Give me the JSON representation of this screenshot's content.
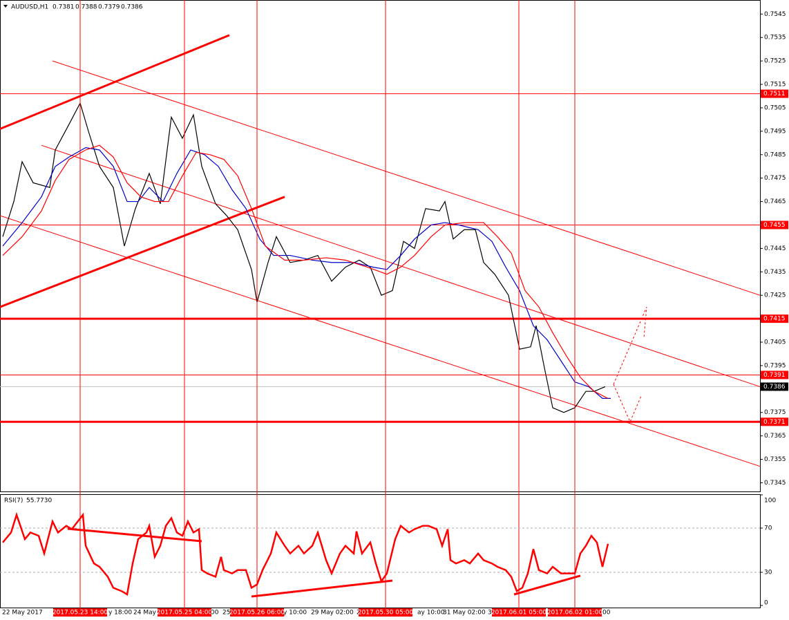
{
  "chart_data": [
    {
      "type": "line",
      "title": "AUDUSD,H1",
      "ohlc": [
        0.7381,
        0.7388,
        0.7379,
        0.7386
      ],
      "xlim": [
        0,
        275
      ],
      "ylim": [
        0.7341,
        0.7551
      ],
      "yticks": [
        0.7545,
        0.7535,
        0.7525,
        0.7515,
        0.7505,
        0.7495,
        0.7485,
        0.7475,
        0.7465,
        0.7455,
        0.7445,
        0.7435,
        0.7425,
        0.7415,
        0.7405,
        0.7395,
        0.7385,
        0.7375,
        0.7365,
        0.7355,
        0.7345
      ],
      "grid": false,
      "series": [
        {
          "color": "#000000",
          "x": [
            1,
            5,
            8,
            12,
            18,
            20,
            25,
            29,
            32,
            36,
            41,
            45,
            49,
            54,
            58,
            62,
            66,
            70,
            73,
            78,
            82,
            86,
            91,
            93,
            97,
            100,
            105,
            110,
            115,
            120,
            125,
            130,
            134,
            138,
            142,
            146,
            150,
            154,
            159,
            161,
            164,
            168,
            172,
            175,
            179,
            184,
            188,
            192,
            194,
            197,
            200,
            204,
            208,
            212,
            215,
            219
          ],
          "values": [
            0.745,
            0.7465,
            0.7482,
            0.7473,
            0.7471,
            0.7487,
            0.7498,
            0.7507,
            0.7495,
            0.748,
            0.7471,
            0.7446,
            0.7462,
            0.7477,
            0.7464,
            0.7501,
            0.7492,
            0.7502,
            0.748,
            0.7464,
            0.7459,
            0.7453,
            0.7436,
            0.7422,
            0.7439,
            0.745,
            0.7439,
            0.744,
            0.7442,
            0.7431,
            0.7437,
            0.744,
            0.7437,
            0.7425,
            0.7427,
            0.7448,
            0.7445,
            0.7462,
            0.7461,
            0.7465,
            0.7449,
            0.7453,
            0.7453,
            0.7439,
            0.7434,
            0.7425,
            0.7402,
            0.7403,
            0.7412,
            0.7394,
            0.7377,
            0.7375,
            0.7377,
            0.7384,
            0.7384,
            0.7386
          ]
        },
        {
          "color": "#0000c8",
          "x": [
            1,
            8,
            15,
            20,
            25,
            31,
            36,
            41,
            46,
            50,
            54,
            59,
            64,
            69,
            74,
            79,
            84,
            89,
            94,
            99,
            105,
            113,
            120,
            128,
            135,
            140,
            145,
            150,
            156,
            161,
            166,
            173,
            178,
            183,
            188,
            193,
            198,
            203,
            208,
            213,
            218,
            221
          ],
          "values": [
            0.7446,
            0.7456,
            0.7467,
            0.748,
            0.7484,
            0.7488,
            0.7487,
            0.748,
            0.7465,
            0.7465,
            0.7471,
            0.7465,
            0.7477,
            0.7487,
            0.7485,
            0.748,
            0.747,
            0.7462,
            0.7449,
            0.7442,
            0.7442,
            0.744,
            0.7439,
            0.7439,
            0.7437,
            0.7436,
            0.7442,
            0.7449,
            0.7455,
            0.7456,
            0.7455,
            0.7453,
            0.7448,
            0.7437,
            0.7427,
            0.7412,
            0.7406,
            0.7397,
            0.7388,
            0.7386,
            0.7381,
            0.7381
          ]
        },
        {
          "color": "#ff0000",
          "x": [
            1,
            8,
            15,
            20,
            25,
            31,
            36,
            41,
            46,
            51,
            56,
            61,
            66,
            71,
            76,
            81,
            86,
            91,
            96,
            103,
            110,
            118,
            125,
            133,
            140,
            145,
            150,
            156,
            161,
            168,
            175,
            180,
            185,
            190,
            195,
            200,
            205,
            210,
            215,
            220
          ],
          "values": [
            0.7442,
            0.745,
            0.7461,
            0.7474,
            0.7483,
            0.7487,
            0.7489,
            0.7484,
            0.7473,
            0.7467,
            0.7465,
            0.7465,
            0.7476,
            0.7486,
            0.7485,
            0.7483,
            0.7476,
            0.7462,
            0.7446,
            0.744,
            0.744,
            0.7441,
            0.744,
            0.7437,
            0.7434,
            0.7437,
            0.7442,
            0.745,
            0.7455,
            0.7456,
            0.7456,
            0.745,
            0.7443,
            0.7427,
            0.742,
            0.7409,
            0.7399,
            0.739,
            0.7384,
            0.7381
          ]
        }
      ],
      "levels": [
        {
          "value": 0.7511,
          "thick": false
        },
        {
          "value": 0.7455,
          "thick": false
        },
        {
          "value": 0.7415,
          "thick": true
        },
        {
          "value": 0.7391,
          "thick": false
        },
        {
          "value": 0.7371,
          "thick": true
        }
      ],
      "trend_lines": [
        {
          "x": [
            19,
            275
          ],
          "values": [
            0.7525,
            0.7425
          ],
          "thick": false
        },
        {
          "x": [
            15,
            275
          ],
          "values": [
            0.7489,
            0.7386
          ],
          "thick": false
        },
        {
          "x": [
            0,
            275
          ],
          "values": [
            0.7459,
            0.7352
          ],
          "thick": false
        },
        {
          "x": [
            0,
            83
          ],
          "values": [
            0.7496,
            0.7536
          ],
          "thick": true
        },
        {
          "x": [
            0,
            103
          ],
          "values": [
            0.742,
            0.7467
          ],
          "thick": true
        }
      ],
      "projections": [
        {
          "x": [
            222,
            234,
            233
          ],
          "values": [
            0.7387,
            0.742,
            0.7407
          ]
        },
        {
          "x": [
            222,
            228,
            232
          ],
          "values": [
            0.7387,
            0.7371,
            0.7382
          ]
        }
      ],
      "time_markers": [
        {
          "x": 29,
          "label": "2017.05.23 14:00"
        },
        {
          "x": 66.75,
          "label": "2017.05.25 04:00"
        },
        {
          "x": 93,
          "label": "2017.05.26 06:00"
        },
        {
          "x": 139.5,
          "label": "2017.05.30 05:00"
        },
        {
          "x": 187.75,
          "label": "2017.06.01 05:00"
        },
        {
          "x": 208,
          "label": "2017.06.02 01:00"
        }
      ],
      "x_labels": [
        {
          "x": 0.75,
          "label": "22 May 2017"
        },
        {
          "x": 39.25,
          "label": "y 18:00"
        },
        {
          "x": 48.25,
          "label": "24 May"
        },
        {
          "x": 76.25,
          "label": "00"
        },
        {
          "x": 80.5,
          "label": "25"
        },
        {
          "x": 102.5,
          "label": "y 10:00"
        },
        {
          "x": 112.5,
          "label": "29 May 02:00"
        },
        {
          "x": 129,
          "label": "2"
        },
        {
          "x": 151,
          "label": "ay 10:00"
        },
        {
          "x": 160.25,
          "label": "31 May 02:00"
        },
        {
          "x": 176.5,
          "label": "3"
        },
        {
          "x": 218,
          "label": "00"
        }
      ]
    },
    {
      "type": "line",
      "title": "RSI(7)",
      "current_label": "55.7730",
      "color": "#ff0000",
      "xlim": [
        0,
        275
      ],
      "ylim": [
        0,
        100
      ],
      "yticks": [
        100,
        70,
        30,
        0
      ],
      "levels": [
        70,
        30
      ],
      "x": [
        1,
        4,
        6,
        9,
        11,
        14,
        16,
        19,
        21,
        24,
        26,
        30,
        31,
        34,
        36,
        39,
        41,
        44,
        46,
        48,
        50,
        53,
        54,
        56,
        58,
        60,
        62,
        64,
        66,
        68,
        70,
        72,
        73,
        75,
        78,
        80,
        81,
        84,
        86,
        89,
        91,
        93,
        95,
        98,
        100,
        103,
        105,
        108,
        110,
        113,
        115,
        118,
        120,
        123,
        125,
        128,
        129,
        131,
        134,
        136,
        138,
        140,
        143,
        145,
        148,
        150,
        153,
        155,
        158,
        160,
        162,
        163,
        165,
        168,
        170,
        173,
        175,
        178,
        180,
        183,
        185,
        187,
        189,
        191,
        193,
        195,
        198,
        200,
        203,
        205,
        208,
        210,
        212,
        214,
        216,
        218,
        220
      ],
      "values": [
        57,
        66,
        82,
        60,
        66,
        63,
        47,
        76,
        66,
        72,
        69,
        82,
        54,
        38,
        35,
        26,
        16,
        13,
        10,
        38,
        60,
        66,
        72,
        44,
        54,
        72,
        79,
        66,
        63,
        76,
        66,
        69,
        32,
        29,
        26,
        44,
        32,
        29,
        32,
        32,
        16,
        19,
        32,
        47,
        66,
        54,
        47,
        54,
        47,
        54,
        66,
        41,
        29,
        47,
        54,
        47,
        67,
        47,
        57,
        38,
        22,
        29,
        60,
        72,
        66,
        69,
        72,
        72,
        69,
        54,
        69,
        41,
        38,
        41,
        38,
        47,
        41,
        38,
        35,
        32,
        26,
        13,
        16,
        29,
        51,
        32,
        29,
        35,
        29,
        29,
        29,
        47,
        54,
        63,
        57,
        35,
        55.773
      ],
      "trend_lines": [
        {
          "x": [
            24.5,
            73
          ],
          "values": [
            69.4,
            58.1
          ],
          "thick": true
        },
        {
          "x": [
            91,
            142
          ],
          "values": [
            8.1,
            22.5
          ],
          "thick": true
        },
        {
          "x": [
            186,
            210
          ],
          "values": [
            10,
            26.9
          ],
          "thick": true
        }
      ]
    }
  ]
}
